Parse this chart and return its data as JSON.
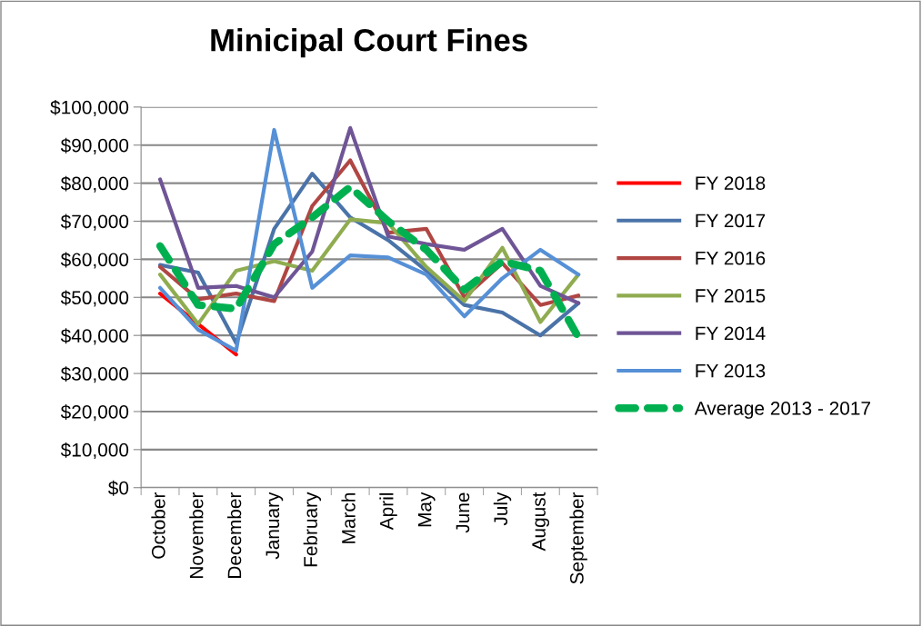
{
  "chart_data": {
    "type": "line",
    "title": "Minicipal Court Fines",
    "categories": [
      "October",
      "November",
      "December",
      "January",
      "February",
      "March",
      "April",
      "May",
      "June",
      "July",
      "August",
      "September"
    ],
    "series": [
      {
        "name": "FY 2018",
        "color": "#ff0000",
        "values": [
          51000,
          43000,
          35000,
          null,
          null,
          null,
          null,
          null,
          null,
          null,
          null,
          null
        ]
      },
      {
        "name": "FY 2017",
        "color": "#4a73a8",
        "values": [
          58500,
          56500,
          38000,
          68000,
          82500,
          71000,
          65000,
          57000,
          48000,
          46000,
          40000,
          48500
        ]
      },
      {
        "name": "FY 2016",
        "color": "#b04643",
        "values": [
          58000,
          49500,
          51000,
          49000,
          74000,
          86000,
          67000,
          68000,
          50000,
          59000,
          48000,
          50500
        ]
      },
      {
        "name": "FY 2015",
        "color": "#8fac50",
        "values": [
          56000,
          43000,
          57000,
          59500,
          57000,
          70500,
          69500,
          58000,
          49000,
          63000,
          43500,
          56000
        ]
      },
      {
        "name": "FY 2014",
        "color": "#6f5596",
        "values": [
          81000,
          52500,
          53000,
          50000,
          62000,
          94500,
          66000,
          64000,
          62500,
          68000,
          53000,
          48500
        ]
      },
      {
        "name": "FY 2013",
        "color": "#5690d6",
        "values": [
          52500,
          41500,
          36000,
          94000,
          52500,
          61000,
          60500,
          56000,
          45000,
          55000,
          62500,
          56000
        ]
      },
      {
        "name": "Average 2013 - 2017",
        "color": "#00b050",
        "line_style": "dashed",
        "values": [
          63500,
          48000,
          47000,
          64000,
          71000,
          79000,
          70000,
          62500,
          52000,
          59500,
          57000,
          39500
        ]
      }
    ],
    "ylim": [
      0,
      100000
    ],
    "yticks": [
      {
        "value": 0,
        "label": "$0"
      },
      {
        "value": 10000,
        "label": "$10,000"
      },
      {
        "value": 20000,
        "label": "$20,000"
      },
      {
        "value": 30000,
        "label": "$30,000"
      },
      {
        "value": 40000,
        "label": "$40,000"
      },
      {
        "value": 50000,
        "label": "$50,000"
      },
      {
        "value": 60000,
        "label": "$60,000"
      },
      {
        "value": 70000,
        "label": "$70,000"
      },
      {
        "value": 80000,
        "label": "$80,000"
      },
      {
        "value": 90000,
        "label": "$90,000"
      },
      {
        "value": 100000,
        "label": "$100,000"
      }
    ],
    "grid": "y",
    "legend": "right",
    "line_style": "solid"
  }
}
